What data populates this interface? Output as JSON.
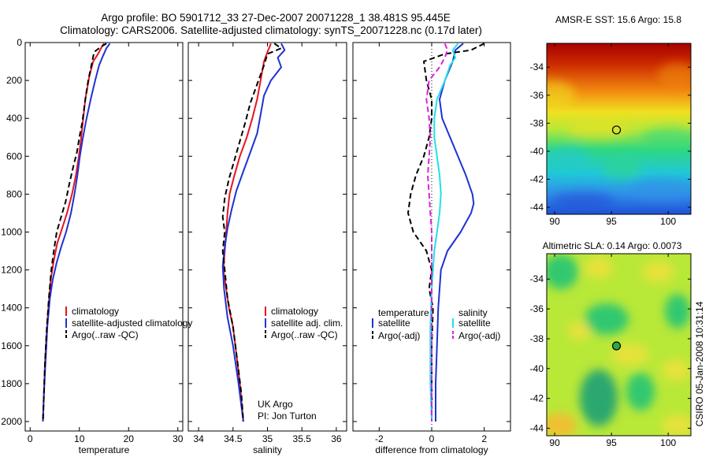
{
  "title_line1": "Argo profile: BO 5901712_33 27-Dec-2007 20071228_1 38.481S 95.445E",
  "title_line2": "Climatology: CARS2006. Satellite-adjusted climatology: synTS_20071228.nc (0.17d later)",
  "credit_line1": "UK Argo",
  "credit_line2": "PI: Jon Turton",
  "timestamp": "CSIRO 05-Jan-2008 10:31:14",
  "colors": {
    "red": "#e8141e",
    "blue": "#1e32d2",
    "black": "#000000",
    "cyan": "#22e0e8",
    "magenta": "#e020d8"
  },
  "chart_data": [
    {
      "type": "line",
      "xlabel": "temperature",
      "ylabel": "",
      "xlim": [
        -1,
        31
      ],
      "ylim": [
        2050,
        0
      ],
      "xticks": [
        0,
        10,
        20,
        30
      ],
      "yticks": [
        0,
        200,
        400,
        600,
        800,
        1000,
        1200,
        1400,
        1600,
        1800,
        2000
      ],
      "legend": {
        "placement": "lower-right",
        "entries": [
          "climatology",
          "satellite-adjusted climatology",
          "Argo(..raw -QC)"
        ]
      },
      "series": [
        {
          "name": "climatology",
          "color": "red",
          "dash": "solid",
          "points": [
            [
              15,
              5
            ],
            [
              14.5,
              25
            ],
            [
              13.8,
              60
            ],
            [
              12.8,
              100
            ],
            [
              12,
              180
            ],
            [
              11.2,
              300
            ],
            [
              10.7,
              420
            ],
            [
              10.3,
              520
            ],
            [
              9.9,
              600
            ],
            [
              9.3,
              700
            ],
            [
              8.5,
              800
            ],
            [
              7.5,
              900
            ],
            [
              6.5,
              980
            ],
            [
              5.5,
              1060
            ],
            [
              4.8,
              1150
            ],
            [
              4.2,
              1250
            ],
            [
              3.7,
              1400
            ],
            [
              3.3,
              1550
            ],
            [
              3,
              1700
            ],
            [
              2.8,
              1850
            ],
            [
              2.6,
              2000
            ]
          ]
        },
        {
          "name": "satellite-adjusted climatology",
          "color": "blue",
          "dash": "solid",
          "points": [
            [
              16.2,
              5
            ],
            [
              15.5,
              30
            ],
            [
              14.8,
              70
            ],
            [
              14,
              120
            ],
            [
              13.2,
              200
            ],
            [
              12.3,
              300
            ],
            [
              11.3,
              420
            ],
            [
              10.6,
              520
            ],
            [
              10.1,
              600
            ],
            [
              9.6,
              700
            ],
            [
              9,
              800
            ],
            [
              8.3,
              900
            ],
            [
              7.3,
              1000
            ],
            [
              6.3,
              1080
            ],
            [
              5.4,
              1160
            ],
            [
              4.6,
              1250
            ],
            [
              4,
              1350
            ],
            [
              3.5,
              1500
            ],
            [
              3.1,
              1700
            ],
            [
              2.8,
              1850
            ],
            [
              2.6,
              2000
            ]
          ]
        },
        {
          "name": "Argo(..raw -QC)",
          "color": "black",
          "dash": "dashed",
          "points": [
            [
              15.5,
              5
            ],
            [
              14.5,
              20
            ],
            [
              13,
              50
            ],
            [
              12.6,
              100
            ],
            [
              11.8,
              200
            ],
            [
              11.2,
              300
            ],
            [
              10.6,
              420
            ],
            [
              10,
              500
            ],
            [
              9.5,
              580
            ],
            [
              8.8,
              650
            ],
            [
              8,
              740
            ],
            [
              7.2,
              840
            ],
            [
              6.3,
              920
            ],
            [
              5.4,
              1000
            ],
            [
              4.8,
              1100
            ],
            [
              4.3,
              1200
            ],
            [
              3.8,
              1350
            ],
            [
              3.4,
              1500
            ],
            [
              3,
              1700
            ],
            [
              2.8,
              1850
            ],
            [
              2.6,
              2000
            ]
          ]
        }
      ]
    },
    {
      "type": "line",
      "xlabel": "salinity",
      "ylabel": "",
      "xlim": [
        33.85,
        36.15
      ],
      "ylim": [
        2050,
        0
      ],
      "xticks": [
        34,
        34.5,
        35,
        35.5,
        36
      ],
      "yticks": [
        0,
        200,
        400,
        600,
        800,
        1000,
        1200,
        1400,
        1600,
        1800,
        2000
      ],
      "legend": {
        "placement": "lower-right",
        "entries": [
          "climatology",
          "satellite adj. clim.",
          "Argo(..raw -QC)"
        ]
      },
      "series": [
        {
          "name": "climatology",
          "color": "red",
          "dash": "solid",
          "points": [
            [
              35.05,
              5
            ],
            [
              35,
              50
            ],
            [
              34.95,
              100
            ],
            [
              34.9,
              200
            ],
            [
              34.85,
              300
            ],
            [
              34.78,
              400
            ],
            [
              34.7,
              500
            ],
            [
              34.6,
              600
            ],
            [
              34.52,
              700
            ],
            [
              34.45,
              800
            ],
            [
              34.42,
              900
            ],
            [
              34.4,
              1000
            ],
            [
              34.38,
              1100
            ],
            [
              34.36,
              1200
            ],
            [
              34.4,
              1300
            ],
            [
              34.44,
              1400
            ],
            [
              34.5,
              1500
            ],
            [
              34.55,
              1650
            ],
            [
              34.6,
              1800
            ],
            [
              34.65,
              2000
            ]
          ]
        },
        {
          "name": "satellite adj. clim.",
          "color": "blue",
          "dash": "solid",
          "points": [
            [
              35.2,
              5
            ],
            [
              35.25,
              40
            ],
            [
              35.15,
              80
            ],
            [
              35.2,
              130
            ],
            [
              35.05,
              200
            ],
            [
              34.95,
              280
            ],
            [
              34.9,
              380
            ],
            [
              34.85,
              480
            ],
            [
              34.75,
              580
            ],
            [
              34.65,
              680
            ],
            [
              34.55,
              780
            ],
            [
              34.48,
              880
            ],
            [
              34.42,
              980
            ],
            [
              34.38,
              1080
            ],
            [
              34.35,
              1180
            ],
            [
              34.37,
              1300
            ],
            [
              34.42,
              1450
            ],
            [
              34.5,
              1600
            ],
            [
              34.58,
              1800
            ],
            [
              34.65,
              2000
            ]
          ]
        },
        {
          "name": "Argo(..raw -QC)",
          "color": "black",
          "dash": "dashed",
          "points": [
            [
              35.1,
              5
            ],
            [
              35.2,
              30
            ],
            [
              35,
              60
            ],
            [
              34.95,
              120
            ],
            [
              34.85,
              220
            ],
            [
              34.75,
              320
            ],
            [
              34.68,
              420
            ],
            [
              34.6,
              520
            ],
            [
              34.52,
              620
            ],
            [
              34.44,
              720
            ],
            [
              34.38,
              820
            ],
            [
              34.35,
              920
            ],
            [
              34.38,
              1000
            ],
            [
              34.35,
              1100
            ],
            [
              34.38,
              1200
            ],
            [
              34.42,
              1350
            ],
            [
              34.5,
              1500
            ],
            [
              34.57,
              1700
            ],
            [
              34.62,
              1850
            ],
            [
              34.65,
              2000
            ]
          ]
        }
      ]
    },
    {
      "type": "line",
      "xlabel": "difference from climatology",
      "ylabel": "",
      "xlim": [
        -3,
        3
      ],
      "ylim": [
        2050,
        0
      ],
      "xticks": [
        -2,
        0,
        2
      ],
      "yticks": [
        0,
        200,
        400,
        600,
        800,
        1000,
        1200,
        1400,
        1600,
        1800,
        2000
      ],
      "legend": {
        "placement": "lower",
        "group_titles": [
          "temperature",
          "salinity"
        ],
        "entries": [
          "satellite",
          "Argo(-adj)",
          "satellite",
          "Argo(-adj)"
        ]
      },
      "series": [
        {
          "name": "temperature satellite",
          "color": "blue",
          "dash": "solid",
          "points": [
            [
              1.2,
              5
            ],
            [
              0.9,
              40
            ],
            [
              0.8,
              100
            ],
            [
              0.5,
              200
            ],
            [
              0.3,
              300
            ],
            [
              0.4,
              400
            ],
            [
              0.7,
              500
            ],
            [
              1.0,
              600
            ],
            [
              1.3,
              700
            ],
            [
              1.55,
              800
            ],
            [
              1.6,
              850
            ],
            [
              1.5,
              900
            ],
            [
              1.1,
              1000
            ],
            [
              0.6,
              1100
            ],
            [
              0.35,
              1200
            ],
            [
              0.25,
              1400
            ],
            [
              0.2,
              1600
            ],
            [
              0.15,
              1800
            ],
            [
              0.15,
              2000
            ]
          ]
        },
        {
          "name": "temperature Argo(-adj)",
          "color": "black",
          "dash": "dashed",
          "points": [
            [
              2,
              5
            ],
            [
              1.5,
              40
            ],
            [
              0.5,
              60
            ],
            [
              -0.3,
              100
            ],
            [
              -0.2,
              200
            ],
            [
              0,
              300
            ],
            [
              0,
              400
            ],
            [
              -0.1,
              500
            ],
            [
              -0.3,
              600
            ],
            [
              -0.6,
              700
            ],
            [
              -0.8,
              800
            ],
            [
              -0.9,
              900
            ],
            [
              -0.7,
              1000
            ],
            [
              -0.2,
              1100
            ],
            [
              0,
              1200
            ],
            [
              -0.1,
              1300
            ],
            [
              0.05,
              1400
            ],
            [
              0,
              1600
            ],
            [
              0,
              1800
            ],
            [
              0,
              2000
            ]
          ]
        },
        {
          "name": "salinity satellite",
          "color": "cyan",
          "dash": "solid",
          "points": [
            [
              1,
              5
            ],
            [
              0.8,
              40
            ],
            [
              0.9,
              80
            ],
            [
              0.7,
              120
            ],
            [
              0.5,
              200
            ],
            [
              0.2,
              300
            ],
            [
              0.1,
              400
            ],
            [
              0.1,
              500
            ],
            [
              0.2,
              600
            ],
            [
              0.3,
              700
            ],
            [
              0.35,
              800
            ],
            [
              0.3,
              900
            ],
            [
              0.2,
              1000
            ],
            [
              0.1,
              1100
            ],
            [
              0,
              1300
            ],
            [
              -0.05,
              1500
            ],
            [
              -0.05,
              1800
            ],
            [
              0,
              2000
            ]
          ]
        },
        {
          "name": "salinity Argo(-adj)",
          "color": "magenta",
          "dash": "dashed",
          "points": [
            [
              0.5,
              5
            ],
            [
              0.6,
              40
            ],
            [
              0.5,
              80
            ],
            [
              0.3,
              130
            ],
            [
              -0.1,
              200
            ],
            [
              -0.2,
              300
            ],
            [
              -0.1,
              400
            ],
            [
              -0.05,
              500
            ],
            [
              -0.1,
              600
            ],
            [
              -0.15,
              700
            ],
            [
              -0.1,
              800
            ],
            [
              -0.05,
              900
            ],
            [
              0,
              1000
            ],
            [
              0,
              1200
            ],
            [
              0,
              1500
            ],
            [
              0,
              2000
            ]
          ]
        }
      ]
    },
    {
      "type": "heatmap",
      "title": "AMSR-E SST: 15.6  Argo: 15.8",
      "xlim": [
        89.3,
        102
      ],
      "ylim": [
        -44.5,
        -32.3
      ],
      "xticks": [
        90,
        95,
        100
      ],
      "yticks": [
        -34,
        -36,
        -38,
        -40,
        -42,
        -44
      ],
      "marker": {
        "x": 95.445,
        "y": -38.481,
        "fill": "none"
      }
    },
    {
      "type": "heatmap",
      "title": "Altimetric SLA: 0.14  Argo: 0.0073",
      "xlim": [
        89.3,
        102
      ],
      "ylim": [
        -44.5,
        -32.3
      ],
      "xticks": [
        90,
        95,
        100
      ],
      "yticks": [
        -34,
        -36,
        -38,
        -40,
        -42,
        -44
      ],
      "marker": {
        "x": 95.445,
        "y": -38.481,
        "fill": "#2ca84a"
      }
    }
  ]
}
